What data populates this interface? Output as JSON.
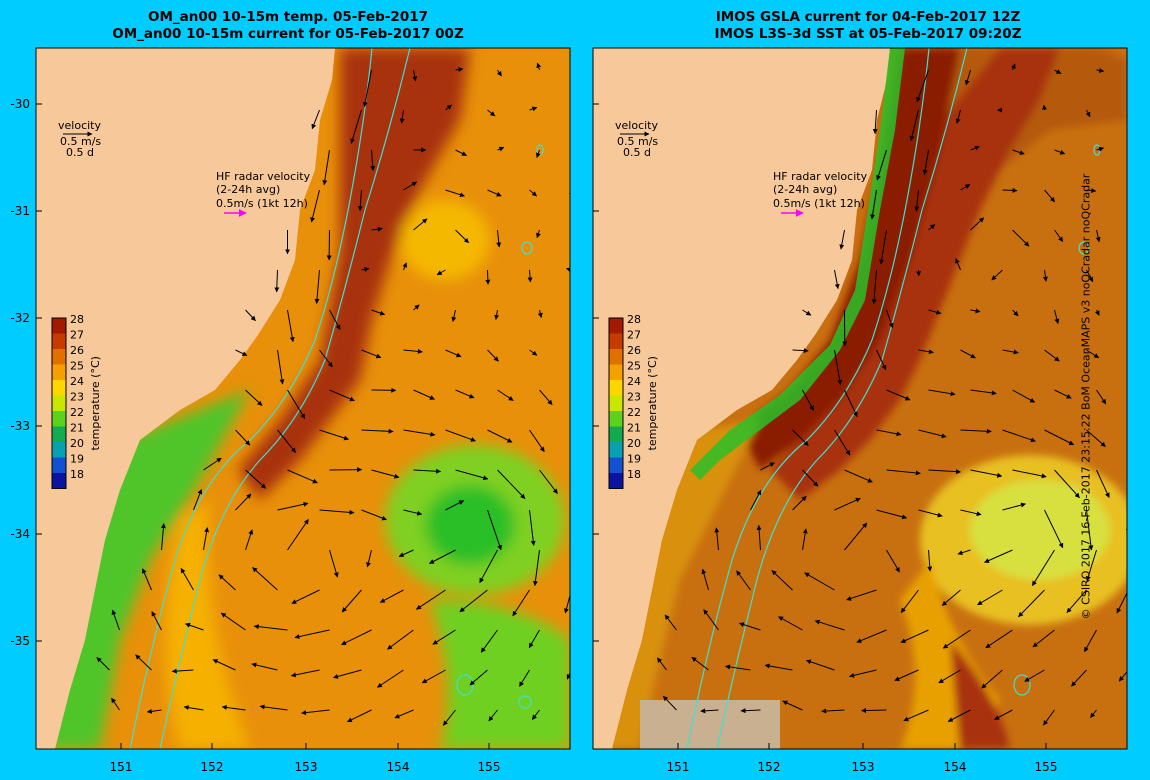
{
  "left_panel": {
    "title_line1": "OM_an00 10-15m temp. 05-Feb-2017",
    "title_line2": "OM_an00 10-15m current for 05-Feb-2017 00Z"
  },
  "right_panel": {
    "title_line1": "IMOS GSLA current for 04-Feb-2017 12Z",
    "title_line2": "IMOS L3S-3d SST at 05-Feb-2017 09:20Z"
  },
  "axes": {
    "y_ticks": [
      "-30",
      "-31",
      "-32",
      "-33",
      "-34",
      "-35"
    ],
    "x_ticks": [
      "151",
      "152",
      "153",
      "154",
      "155"
    ]
  },
  "velocity_legend": {
    "label": "velocity",
    "scale": "0.5 m/s",
    "duration": "0.5 d"
  },
  "hf_radar_legend": {
    "line1": "HF radar velocity",
    "line2": "(2-24h avg)",
    "line3": "0.5m/s (1kt 12h)",
    "arrow_color": "#ff00ff"
  },
  "colorbar": {
    "label": "temperature (°C)",
    "ticks": [
      "28",
      "27",
      "26",
      "25",
      "24",
      "23",
      "22",
      "21",
      "20",
      "19",
      "18"
    ],
    "colors": [
      "#a31a00",
      "#c63c00",
      "#e07000",
      "#f5a000",
      "#ffd700",
      "#c8e600",
      "#5ad21e",
      "#14aa50",
      "#0aa0b4",
      "#1450d2",
      "#0a14a0"
    ]
  },
  "credit": "© CSIRO 2017   16-Feb-2017 23:15:22 BoM OceanMAPS v3 noQCradar noQCradar",
  "colors": {
    "background": "#00ccff",
    "land": "#f7c89a",
    "eac_core": "#a8320a",
    "warm_water": "#e8900a",
    "cool_water": "#55c520",
    "isobath": "#40e0d0"
  }
}
